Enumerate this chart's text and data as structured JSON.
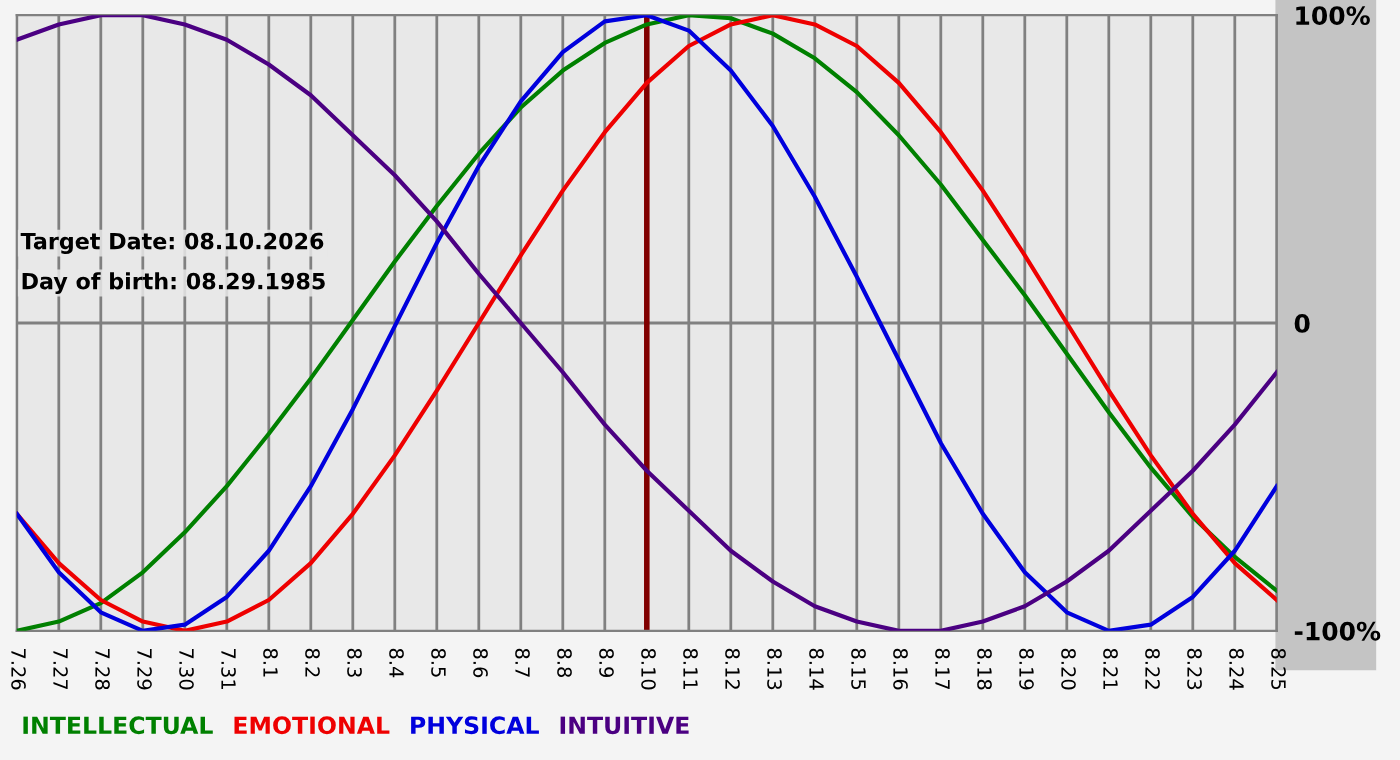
{
  "chart_data": {
    "type": "line",
    "categories": [
      "7.26",
      "7.27",
      "7.28",
      "7.29",
      "7.30",
      "7.31",
      "8.1",
      "8.2",
      "8.3",
      "8.4",
      "8.5",
      "8.6",
      "8.7",
      "8.8",
      "8.9",
      "8.10",
      "8.11",
      "8.12",
      "8.13",
      "8.14",
      "8.15",
      "8.16",
      "8.17",
      "8.18",
      "8.19",
      "8.20",
      "8.21",
      "8.22",
      "8.23",
      "8.24",
      "8.25"
    ],
    "series": [
      {
        "name": "INTELLECTUAL",
        "color": "#008000",
        "values": [
          -100,
          -97,
          -91,
          -81,
          -68,
          -53,
          -36,
          -18,
          1,
          20,
          38,
          55,
          70,
          82,
          91,
          97,
          100,
          99,
          94,
          86,
          75,
          61,
          45,
          27,
          9,
          -10,
          -29,
          -47,
          -63,
          -76,
          -87
        ]
      },
      {
        "name": "EMOTIONAL",
        "color": "#ee0000",
        "values": [
          -62,
          -78,
          -90,
          -97,
          -100,
          -97,
          -90,
          -78,
          -62,
          -43,
          -22,
          0,
          22,
          43,
          62,
          78,
          90,
          97,
          100,
          97,
          90,
          78,
          62,
          43,
          22,
          0,
          -22,
          -43,
          -62,
          -78,
          -90
        ]
      },
      {
        "name": "PHYSICAL",
        "color": "#0000dd",
        "values": [
          -62,
          -81,
          -94,
          -100,
          -98,
          -89,
          -74,
          -53,
          -28,
          -1,
          26,
          51,
          72,
          88,
          98,
          100,
          95,
          82,
          64,
          41,
          15,
          -12,
          -39,
          -62,
          -81,
          -94,
          -100,
          -98,
          -89,
          -74,
          -53
        ]
      },
      {
        "name": "INTUITIVE",
        "color": "#4b0082",
        "values": [
          92,
          97,
          100,
          100,
          97,
          92,
          84,
          74,
          61,
          48,
          33,
          16,
          0,
          -16,
          -33,
          -48,
          -61,
          -74,
          -84,
          -92,
          -97,
          -100,
          -100,
          -97,
          -92,
          -84,
          -74,
          -61,
          -48,
          -33,
          -16
        ]
      }
    ],
    "ylim": [
      -100,
      100
    ],
    "yticks": [
      {
        "value": 100,
        "label": "100%"
      },
      0,
      {
        "value": -100,
        "label": "-100%"
      }
    ],
    "grid": "x",
    "ref_lines": [
      {
        "axis": "y",
        "value": 0,
        "color": "#808080"
      },
      {
        "axis": "x",
        "value": "8.10",
        "color": "#800000"
      }
    ],
    "annotations": [
      "Target Date: 08.10.2026",
      "Day of birth: 08.29.1985"
    ],
    "legend": "bottom left",
    "marker": "none",
    "line_style": "solid"
  }
}
